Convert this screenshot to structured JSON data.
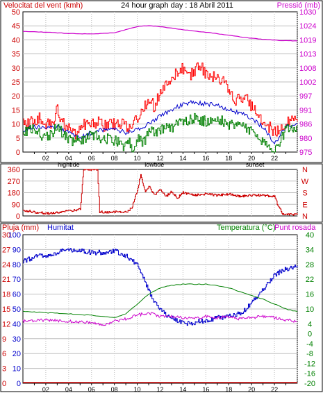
{
  "header": {
    "left_title": "Velocitat del vent (kmh)",
    "center_title": "24 hour graph day : 18 Abril 2011",
    "right_title": "Pressió (mb)"
  },
  "colors": {
    "wind_gust": "#ff0000",
    "wind_avg": "#0000cc",
    "wind_low": "#008000",
    "pressure": "#cc00cc",
    "direction": "#cc0000",
    "rain": "#cc0000",
    "humidity": "#0000cc",
    "temperature": "#008000",
    "dew_point": "#cc00cc",
    "grid": "#bfbfbf",
    "frame": "#000000"
  },
  "chart_data": [
    {
      "id": "wind",
      "type": "line",
      "x_ticks": [
        "02",
        "04",
        "06",
        "08",
        "10",
        "12",
        "14",
        "16",
        "18",
        "20",
        "22",
        ""
      ],
      "x_markers": [
        {
          "label": "hightide",
          "x": 4
        },
        {
          "label": "lowtide",
          "x": 11.5
        },
        {
          "label": "sunset",
          "x": 20.3
        }
      ],
      "left_axis": {
        "title": "Velocitat del vent (kmh)",
        "ticks": [
          0,
          5,
          10,
          15,
          20,
          25,
          30,
          35,
          40,
          45,
          50
        ],
        "ylim": [
          0,
          50
        ]
      },
      "right_axis": {
        "title": "Pressió (mb)",
        "ticks": [
          975,
          980,
          986,
          991,
          997,
          1002,
          1008,
          1013,
          1019,
          1024,
          1030
        ],
        "ylim": [
          975,
          1030
        ]
      },
      "xlim": [
        0,
        24
      ],
      "series": [
        {
          "key": "gust",
          "axis": "left",
          "points": [
            [
              0,
              10
            ],
            [
              0.5,
              10
            ],
            [
              0.7,
              13
            ],
            [
              1,
              11
            ],
            [
              1.5,
              12
            ],
            [
              2,
              10
            ],
            [
              2.5,
              10
            ],
            [
              3,
              15
            ],
            [
              3.3,
              12
            ],
            [
              3.6,
              10
            ],
            [
              4,
              8
            ],
            [
              4.5,
              6
            ],
            [
              5,
              9
            ],
            [
              5.5,
              10
            ],
            [
              6,
              10
            ],
            [
              6.5,
              11
            ],
            [
              7,
              9
            ],
            [
              7.5,
              10
            ],
            [
              8,
              10
            ],
            [
              8.5,
              10
            ],
            [
              9,
              9
            ],
            [
              9.3,
              8
            ],
            [
              9.6,
              10
            ],
            [
              10,
              12
            ],
            [
              10.5,
              16
            ],
            [
              11,
              19
            ],
            [
              11.5,
              16
            ],
            [
              12,
              22
            ],
            [
              12.5,
              25
            ],
            [
              13,
              27
            ],
            [
              13.5,
              28
            ],
            [
              14,
              30
            ],
            [
              14.5,
              27
            ],
            [
              15,
              29
            ],
            [
              15.5,
              31
            ],
            [
              16,
              28
            ],
            [
              16.5,
              27
            ],
            [
              17,
              26
            ],
            [
              17.5,
              25
            ],
            [
              18,
              22
            ],
            [
              18.5,
              18
            ],
            [
              19,
              19
            ],
            [
              19.5,
              19
            ],
            [
              20,
              16
            ],
            [
              20.5,
              13
            ],
            [
              21,
              10
            ],
            [
              21.5,
              9
            ],
            [
              22,
              7
            ],
            [
              22.5,
              9
            ],
            [
              23,
              11
            ],
            [
              23.5,
              12
            ],
            [
              24,
              11
            ]
          ]
        },
        {
          "key": "avg",
          "axis": "left",
          "points": [
            [
              0,
              8
            ],
            [
              1,
              9
            ],
            [
              2,
              9
            ],
            [
              3,
              9
            ],
            [
              4,
              7
            ],
            [
              5,
              5
            ],
            [
              6,
              7
            ],
            [
              7,
              8
            ],
            [
              8,
              8
            ],
            [
              9,
              7
            ],
            [
              10,
              8
            ],
            [
              11,
              10
            ],
            [
              12,
              13
            ],
            [
              13,
              15
            ],
            [
              14,
              17
            ],
            [
              15,
              18
            ],
            [
              16,
              17
            ],
            [
              17,
              17
            ],
            [
              18,
              15
            ],
            [
              19,
              14
            ],
            [
              20,
              12
            ],
            [
              21,
              9
            ],
            [
              22,
              3
            ],
            [
              22.5,
              6
            ],
            [
              23,
              9
            ],
            [
              24,
              10
            ]
          ]
        },
        {
          "key": "low",
          "axis": "left",
          "points": [
            [
              0,
              7
            ],
            [
              1,
              8
            ],
            [
              2,
              5
            ],
            [
              3,
              9
            ],
            [
              4,
              4
            ],
            [
              5,
              4
            ],
            [
              6,
              6
            ],
            [
              7,
              5
            ],
            [
              8,
              4
            ],
            [
              9,
              2
            ],
            [
              9.3,
              4
            ],
            [
              9.6,
              0
            ],
            [
              10,
              5
            ],
            [
              10.5,
              3
            ],
            [
              11,
              7
            ],
            [
              12,
              8
            ],
            [
              13,
              9
            ],
            [
              14,
              11
            ],
            [
              15,
              12
            ],
            [
              16,
              11
            ],
            [
              17,
              12
            ],
            [
              18,
              10
            ],
            [
              19,
              9
            ],
            [
              20,
              8
            ],
            [
              21,
              4
            ],
            [
              21.5,
              2
            ],
            [
              22,
              0
            ],
            [
              22.5,
              4
            ],
            [
              23,
              8
            ],
            [
              24,
              9
            ]
          ]
        },
        {
          "key": "pressure",
          "axis": "right",
          "points": [
            [
              0,
              1022.3
            ],
            [
              2,
              1022
            ],
            [
              4,
              1021.5
            ],
            [
              6,
              1021.3
            ],
            [
              8,
              1021.8
            ],
            [
              9,
              1023
            ],
            [
              10,
              1024.2
            ],
            [
              11,
              1024.6
            ],
            [
              12,
              1024.2
            ],
            [
              13,
              1023.6
            ],
            [
              14,
              1023
            ],
            [
              15,
              1022.5
            ],
            [
              16,
              1022
            ],
            [
              17,
              1021.4
            ],
            [
              18,
              1020.8
            ],
            [
              19,
              1020.2
            ],
            [
              20,
              1019.6
            ],
            [
              21,
              1019.2
            ],
            [
              22,
              1018.9
            ],
            [
              23,
              1018.7
            ],
            [
              24,
              1018.6
            ]
          ]
        }
      ]
    },
    {
      "id": "direction",
      "type": "line",
      "left_axis": {
        "ticks": [
          0,
          90,
          180,
          270,
          360
        ],
        "ylim": [
          0,
          360
        ]
      },
      "right_axis": {
        "ticks": [
          "N",
          "E",
          "S",
          "W",
          "N"
        ]
      },
      "xlim": [
        0,
        24
      ],
      "series": [
        {
          "key": "direction",
          "points": [
            [
              0,
              45
            ],
            [
              1,
              30
            ],
            [
              2,
              20
            ],
            [
              3,
              25
            ],
            [
              4,
              40
            ],
            [
              5,
              50
            ],
            [
              5.3,
              360
            ],
            [
              6,
              360
            ],
            [
              6.5,
              360
            ],
            [
              6.7,
              30
            ],
            [
              7,
              30
            ],
            [
              8,
              30
            ],
            [
              9,
              30
            ],
            [
              9.5,
              60
            ],
            [
              10,
              200
            ],
            [
              10.3,
              320
            ],
            [
              10.7,
              180
            ],
            [
              11,
              230
            ],
            [
              11.5,
              160
            ],
            [
              12,
              200
            ],
            [
              12.5,
              150
            ],
            [
              13,
              190
            ],
            [
              13.5,
              140
            ],
            [
              14,
              180
            ],
            [
              15,
              160
            ],
            [
              16,
              170
            ],
            [
              17,
              160
            ],
            [
              18,
              170
            ],
            [
              19,
              150
            ],
            [
              20,
              160
            ],
            [
              21,
              160
            ],
            [
              22,
              150
            ],
            [
              22.3,
              80
            ],
            [
              22.7,
              20
            ],
            [
              23,
              10
            ],
            [
              24,
              10
            ]
          ]
        }
      ]
    },
    {
      "id": "humidity_temperature",
      "type": "line",
      "legend_left": [
        "Pluja (mm)",
        "Humitat"
      ],
      "legend_right": [
        "Temperatura (°C)",
        "Punt rosada"
      ],
      "rain_axis": {
        "title": "Pluja (mm)",
        "ticks": [
          0,
          3,
          6,
          9,
          12,
          15,
          18,
          21,
          24,
          27,
          30
        ],
        "ylim": [
          0,
          30
        ]
      },
      "humidity_axis": {
        "title": "Humitat",
        "ticks": [
          0,
          10,
          20,
          30,
          40,
          50,
          60,
          70,
          80,
          90,
          100
        ],
        "ylim": [
          0,
          100
        ]
      },
      "temperature_axis": {
        "title": "Temperatura (°C)",
        "ticks": [
          -20,
          -16,
          -12,
          -8,
          -4,
          0,
          4,
          10,
          16,
          22,
          28,
          34,
          40
        ],
        "ylim": [
          -20,
          40
        ]
      },
      "xlim": [
        0,
        24
      ],
      "series": [
        {
          "key": "rain",
          "axis": "rain",
          "points": [
            [
              0,
              0
            ],
            [
              24,
              0
            ]
          ]
        },
        {
          "key": "humidity",
          "axis": "humidity",
          "points": [
            [
              0,
              82
            ],
            [
              1,
              85
            ],
            [
              2,
              86
            ],
            [
              3,
              88
            ],
            [
              4,
              90
            ],
            [
              5,
              89
            ],
            [
              6,
              88
            ],
            [
              7,
              88
            ],
            [
              8,
              89
            ],
            [
              9,
              86
            ],
            [
              10,
              80
            ],
            [
              10.5,
              72
            ],
            [
              11,
              62
            ],
            [
              11.5,
              55
            ],
            [
              12,
              50
            ],
            [
              12.5,
              46
            ],
            [
              13,
              44
            ],
            [
              13.5,
              42
            ],
            [
              14,
              41
            ],
            [
              14.5,
              40
            ],
            [
              15,
              41
            ],
            [
              15.5,
              42
            ],
            [
              16,
              42
            ],
            [
              17,
              44
            ],
            [
              18,
              45
            ],
            [
              19,
              47
            ],
            [
              19.5,
              50
            ],
            [
              20,
              54
            ],
            [
              21,
              63
            ],
            [
              22,
              73
            ],
            [
              23,
              77
            ],
            [
              24,
              79
            ]
          ]
        },
        {
          "key": "temperature",
          "axis": "temperature",
          "points": [
            [
              0,
              9
            ],
            [
              2,
              8.5
            ],
            [
              4,
              8
            ],
            [
              6,
              7.5
            ],
            [
              7,
              7
            ],
            [
              8,
              6.5
            ],
            [
              9,
              8
            ],
            [
              10,
              12
            ],
            [
              11,
              16
            ],
            [
              12,
              18.5
            ],
            [
              13,
              19.5
            ],
            [
              14,
              20
            ],
            [
              15,
              20
            ],
            [
              16,
              20
            ],
            [
              17,
              19.5
            ],
            [
              18,
              18.5
            ],
            [
              19,
              17
            ],
            [
              20,
              15.5
            ],
            [
              21,
              14
            ],
            [
              22,
              12
            ],
            [
              23,
              10
            ],
            [
              24,
              9
            ]
          ]
        },
        {
          "key": "dew_point",
          "axis": "temperature",
          "points": [
            [
              0,
              5
            ],
            [
              2,
              5.5
            ],
            [
              4,
              5
            ],
            [
              6,
              4.5
            ],
            [
              7,
              3.5
            ],
            [
              8,
              5
            ],
            [
              9,
              6
            ],
            [
              10,
              7.5
            ],
            [
              11,
              8.5
            ],
            [
              12,
              7
            ],
            [
              13,
              7
            ],
            [
              14,
              6.5
            ],
            [
              15,
              6
            ],
            [
              16,
              7
            ],
            [
              17,
              6.5
            ],
            [
              18,
              7
            ],
            [
              19,
              6
            ],
            [
              20,
              6.5
            ],
            [
              21,
              7
            ],
            [
              22,
              6.5
            ],
            [
              23,
              5.5
            ],
            [
              24,
              5
            ]
          ]
        }
      ]
    }
  ]
}
